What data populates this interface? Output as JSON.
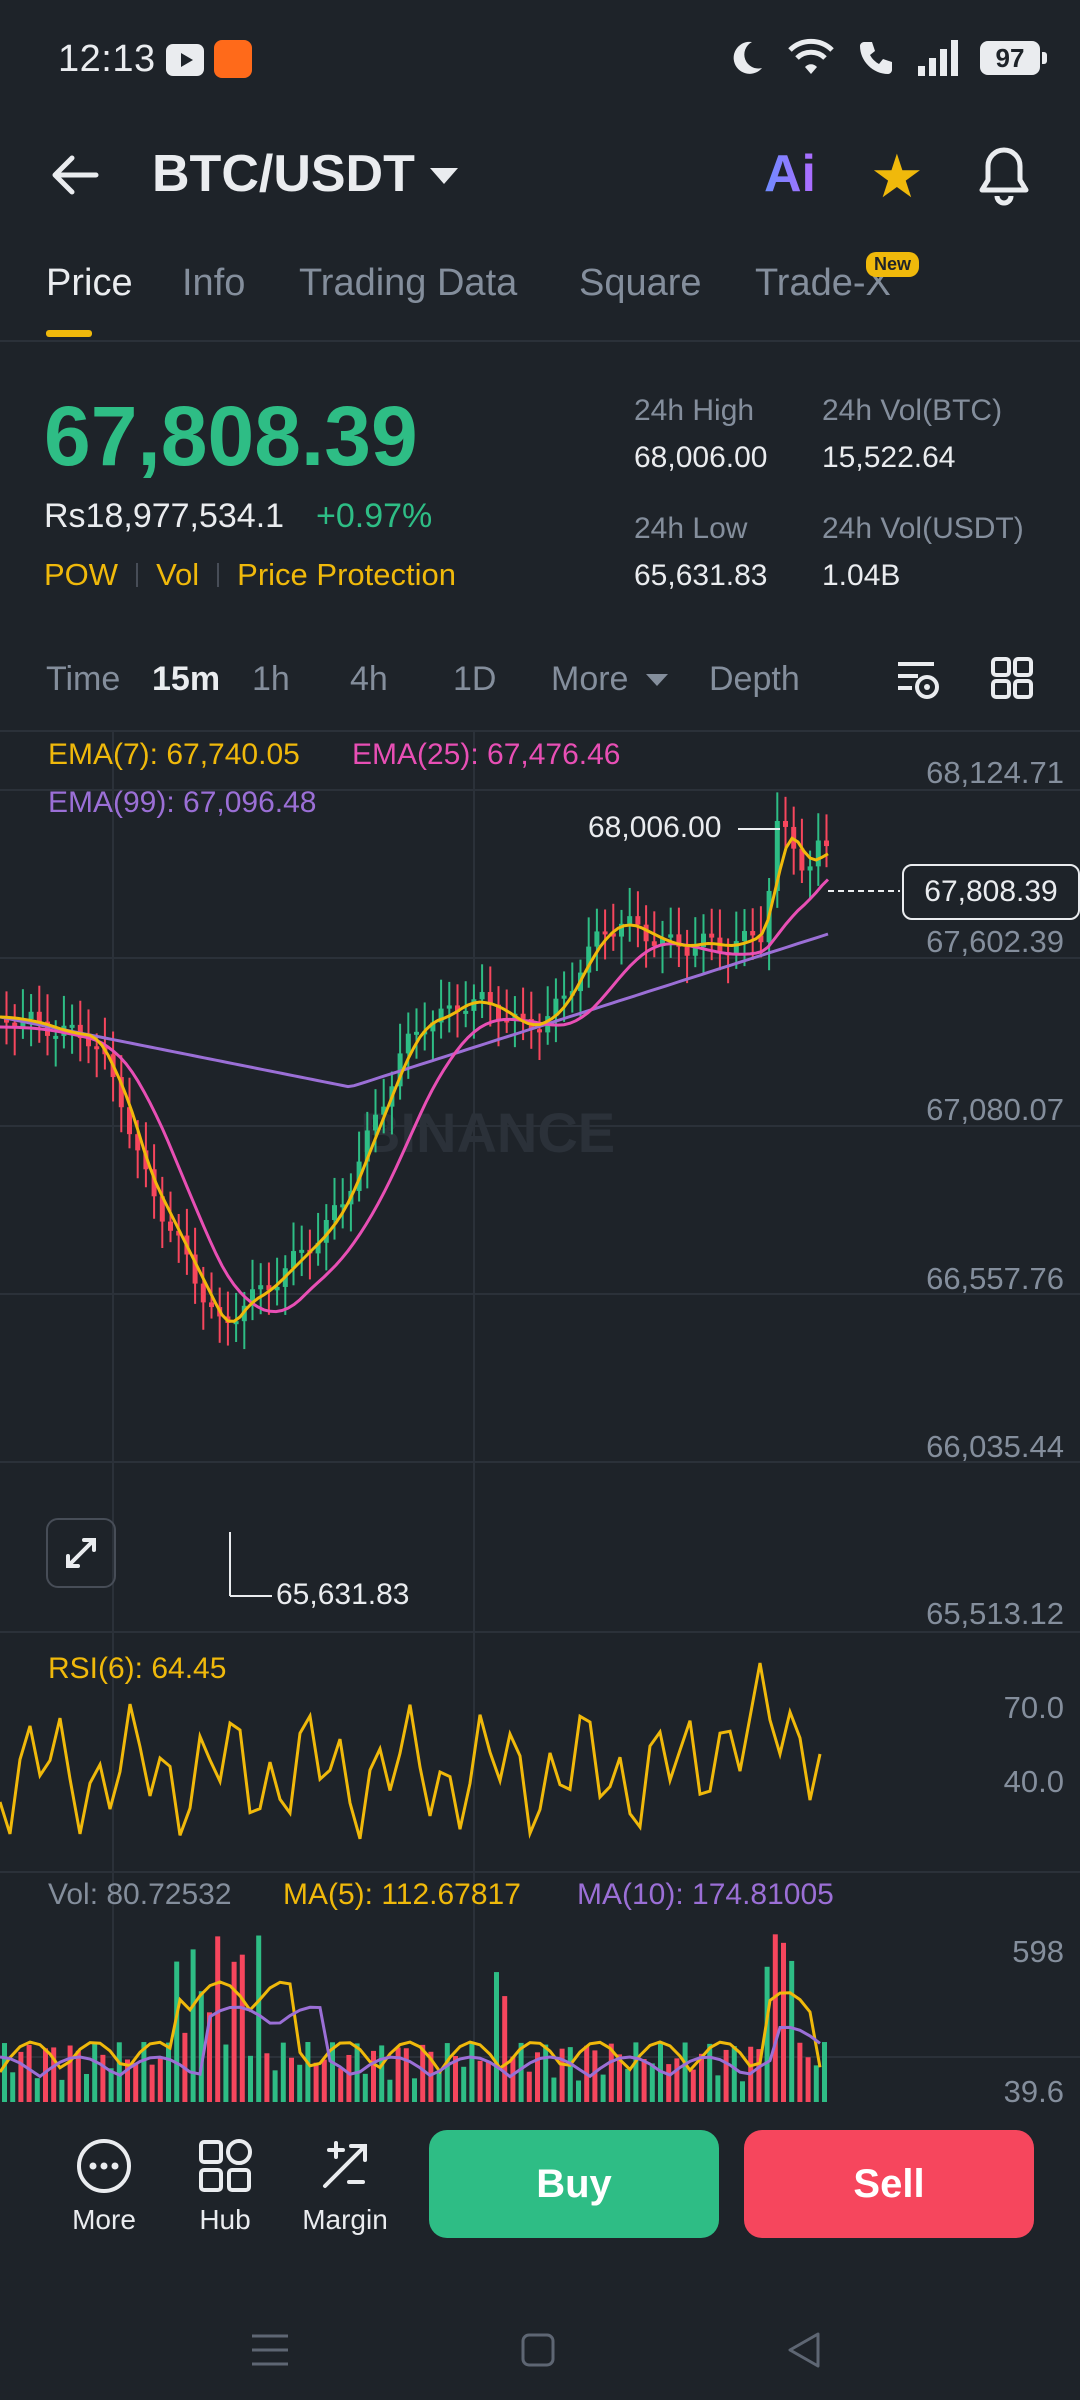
{
  "status_bar": {
    "time": "12:13",
    "battery": "97"
  },
  "header": {
    "pair": "BTC/USDT",
    "ai_label": "Ai"
  },
  "tabs": [
    {
      "label": "Price"
    },
    {
      "label": "Info"
    },
    {
      "label": "Trading Data"
    },
    {
      "label": "Square"
    },
    {
      "label": "Trade-X",
      "badge": "New"
    }
  ],
  "ticker": {
    "price": "67,808.39",
    "fiat": "Rs18,977,534.1",
    "change": "+0.97%",
    "tags": [
      "POW",
      "Vol",
      "Price Protection"
    ],
    "stats": [
      {
        "label": "24h High",
        "value": "68,006.00"
      },
      {
        "label": "24h Vol(BTC)",
        "value": "15,522.64"
      },
      {
        "label": "24h Low",
        "value": "65,631.83"
      },
      {
        "label": "24h Vol(USDT)",
        "value": "1.04B"
      }
    ]
  },
  "intervals": [
    {
      "label": "Time"
    },
    {
      "label": "15m"
    },
    {
      "label": "1h"
    },
    {
      "label": "4h"
    },
    {
      "label": "1D"
    },
    {
      "label": "More"
    },
    {
      "label": "Depth"
    }
  ],
  "indicators": {
    "ema7": "EMA(7): 67,740.05",
    "ema25": "EMA(25): 67,476.46",
    "ema99": "EMA(99): 67,096.48",
    "rsi": "RSI(6): 64.45",
    "vol": "Vol: 80.72532",
    "ma5": "MA(5): 112.67817",
    "ma10": "MA(10): 174.81005"
  },
  "chart_data": {
    "type": "candlestick",
    "price_axis": [
      "68,124.71",
      "67,602.39",
      "67,080.07",
      "66,557.76",
      "66,035.44",
      "65,513.12"
    ],
    "current_price": "67,808.39",
    "high_marker": "68,006.00",
    "low_marker": "65,631.83",
    "rsi_axis": [
      "70.0",
      "40.0"
    ],
    "vol_axis": [
      "598",
      "39.6"
    ],
    "watermark": "BINANCE",
    "colors": {
      "up": "#2ebd85",
      "down": "#f6465d",
      "ema7": "#f0b90b",
      "ema25": "#e84fb5",
      "ema99": "#9b6fd6"
    }
  },
  "actions": {
    "more": "More",
    "hub": "Hub",
    "margin": "Margin",
    "buy": "Buy",
    "sell": "Sell"
  }
}
